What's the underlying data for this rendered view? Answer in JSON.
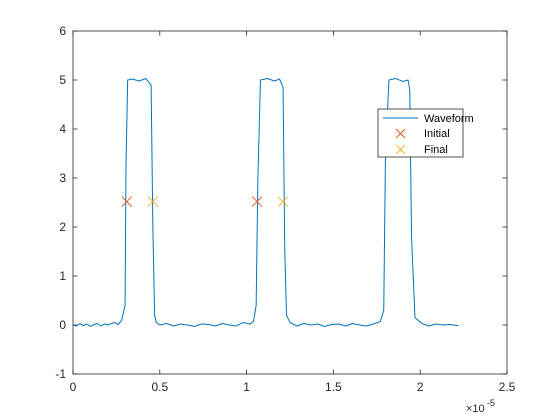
{
  "chart_data": {
    "type": "line",
    "title": "",
    "xlabel": "",
    "ylabel": "",
    "xlim": [
      0,
      2.5e-05
    ],
    "ylim": [
      -1,
      6
    ],
    "x_ticks": [
      0,
      5e-06,
      1e-05,
      1.5e-05,
      2e-05,
      2.5e-05
    ],
    "x_tick_labels": [
      "0",
      "0.5",
      "1",
      "1.5",
      "2",
      "2.5"
    ],
    "x_exponent_base": "×10",
    "x_exponent_power": "-5",
    "y_ticks": [
      -1,
      0,
      1,
      2,
      3,
      4,
      5,
      6
    ],
    "y_tick_labels": [
      "-1",
      "0",
      "1",
      "2",
      "3",
      "4",
      "5",
      "6"
    ],
    "grid": false,
    "legend_position": "top-right",
    "series": [
      {
        "name": "Waveform",
        "style": "line",
        "color": "#0072BD",
        "x": [
          0,
          2e-07,
          4e-07,
          6e-07,
          8e-07,
          1e-06,
          1.2e-06,
          1.4e-06,
          1.6e-06,
          1.8e-06,
          2e-06,
          2.2e-06,
          2.4e-06,
          2.6e-06,
          2.8e-06,
          3e-06,
          3.05e-06,
          3.15e-06,
          3.4e-06,
          3.8e-06,
          4.2e-06,
          4.5e-06,
          4.6e-06,
          4.7e-06,
          4.8e-06,
          5e-06,
          5.4e-06,
          5.8e-06,
          6.2e-06,
          6.6e-06,
          7e-06,
          7.4e-06,
          7.8e-06,
          8.2e-06,
          8.6e-06,
          9e-06,
          9.4e-06,
          9.8e-06,
          1.02e-05,
          1.04e-05,
          1.055e-05,
          1.065e-05,
          1.08e-05,
          1.12e-05,
          1.16e-05,
          1.19e-05,
          1.21e-05,
          1.22e-05,
          1.23e-05,
          1.25e-05,
          1.29e-05,
          1.33e-05,
          1.37e-05,
          1.41e-05,
          1.45e-05,
          1.49e-05,
          1.53e-05,
          1.57e-05,
          1.61e-05,
          1.65e-05,
          1.69e-05,
          1.73e-05,
          1.77e-05,
          1.79e-05,
          1.8e-05,
          1.82e-05,
          1.86e-05,
          1.9e-05,
          1.93e-05,
          1.94e-05,
          1.95e-05,
          1.97e-05,
          2.01e-05,
          2.05e-05,
          2.09e-05,
          2.13e-05,
          2.17e-05,
          2.21e-05,
          2.22e-05
        ],
        "y": [
          0,
          -0.02,
          0.03,
          -0.01,
          0.02,
          -0.03,
          0.01,
          0.03,
          -0.02,
          0.02,
          0,
          0.03,
          0.05,
          0.01,
          0.1,
          0.4,
          3.2,
          5.0,
          5.02,
          4.98,
          5.03,
          4.9,
          2.0,
          0.2,
          0.05,
          0,
          0.03,
          -0.02,
          0.02,
          0,
          -0.03,
          0.02,
          0.01,
          -0.02,
          0.03,
          0,
          -0.02,
          0.05,
          0.02,
          0.08,
          0.4,
          3.0,
          5.0,
          5.03,
          4.98,
          5.02,
          4.85,
          1.5,
          0.2,
          0.05,
          -0.02,
          0.03,
          0,
          0.02,
          -0.03,
          0.01,
          0.02,
          -0.02,
          0.03,
          0,
          -0.02,
          0.02,
          0.07,
          0.3,
          3.5,
          5.0,
          5.03,
          4.97,
          5.0,
          4.8,
          1.8,
          0.15,
          0.03,
          -0.02,
          0.02,
          0,
          0.01,
          -0.01,
          0
        ]
      },
      {
        "name": "Initial",
        "style": "marker-x",
        "color": "#D95319",
        "x": [
          3.1e-06,
          1.06e-05
        ],
        "y": [
          2.52,
          2.52
        ]
      },
      {
        "name": "Final",
        "style": "marker-x",
        "color": "#EDB120",
        "x": [
          4.6e-06,
          1.21e-05
        ],
        "y": [
          2.52,
          2.52
        ]
      }
    ]
  }
}
